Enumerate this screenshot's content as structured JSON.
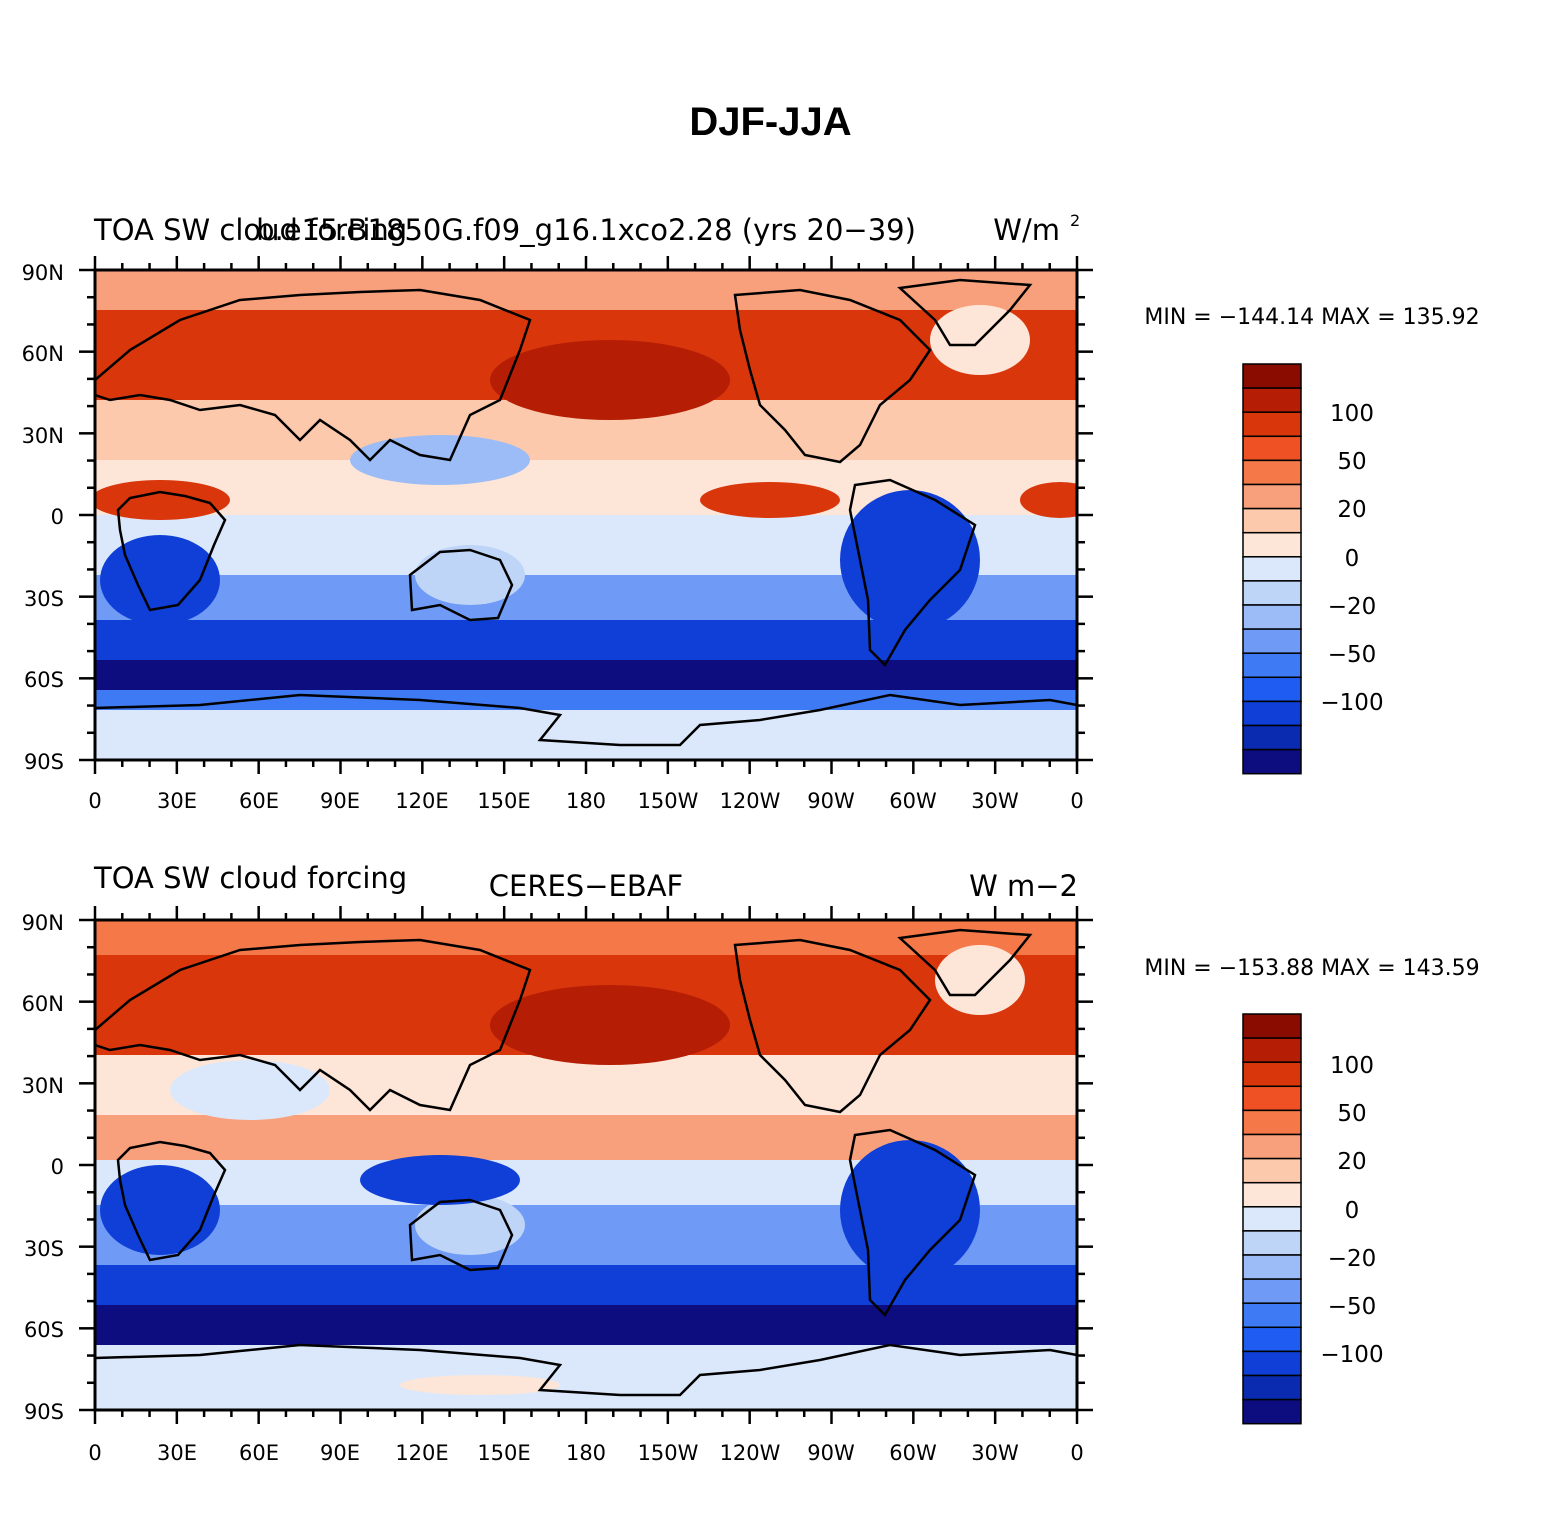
{
  "figure": {
    "title": "DJF-JJA",
    "colors": {
      "levels": [
        "#0d0d80",
        "#0a2bb0",
        "#0f3fd6",
        "#1f5cf2",
        "#3f7af5",
        "#6f9bf6",
        "#9bbcf6",
        "#bed5f8",
        "#dbe8fb",
        "#fde6d8",
        "#fcc9ac",
        "#f8a07c",
        "#f47848",
        "#ef5124",
        "#d9360c",
        "#b51e04",
        "#8a0c00"
      ],
      "land_outline": "#000000"
    }
  },
  "panels": [
    {
      "left_label": "TOA SW cloud forcing",
      "center_label": "b.e15.B1850G.f09_g16.1xco2.28 (yrs 20−39)",
      "right_label": "W/m",
      "right_label_sup": "2",
      "stats": "MIN = −144.14  MAX = 135.92",
      "colorbar_labels": [
        "100",
        "50",
        "20",
        "0",
        "−20",
        "−50",
        "−100"
      ]
    },
    {
      "left_label": "TOA SW cloud forcing",
      "center_label": "CERES−EBAF",
      "right_label": "W m−2",
      "right_label_sup": "",
      "stats": "MIN = −153.88  MAX = 143.59",
      "colorbar_labels": [
        "100",
        "50",
        "20",
        "0",
        "−20",
        "−50",
        "−100"
      ]
    }
  ],
  "axes": {
    "x_ticks": [
      "0",
      "30E",
      "60E",
      "90E",
      "120E",
      "150E",
      "180",
      "150W",
      "120W",
      "90W",
      "60W",
      "30W",
      "0"
    ],
    "y_ticks": [
      "90N",
      "60N",
      "30N",
      "0",
      "30S",
      "60S",
      "90S"
    ]
  },
  "chart_data": {
    "type": "heatmap",
    "title": "DJF-JJA",
    "x_ticks": [
      "0",
      "30E",
      "60E",
      "90E",
      "120E",
      "150E",
      "180",
      "150W",
      "120W",
      "90W",
      "60W",
      "30W",
      "0"
    ],
    "y_ticks": [
      "90N",
      "60N",
      "30N",
      "0",
      "30S",
      "60S",
      "90S"
    ],
    "xlim": [
      0,
      360
    ],
    "ylim": [
      -90,
      90
    ],
    "colorbar_labels": [
      "100",
      "50",
      "20",
      "0",
      "−20",
      "−50",
      "−100"
    ],
    "panels": [
      {
        "label": "b.e15.B1850G.f09_g16.1xco2.28 (yrs 20−39)",
        "min": -144.14,
        "max": 135.92
      },
      {
        "label": "CERES−EBAF",
        "min": -153.88,
        "max": 143.59
      }
    ]
  }
}
